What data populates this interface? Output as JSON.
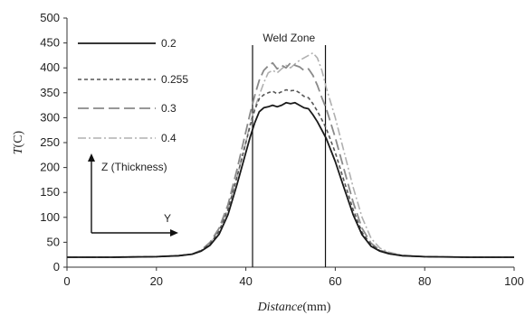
{
  "chart_data": {
    "type": "line",
    "xlabel_italic": "Distance",
    "xlabel_unit": "(mm)",
    "ylabel_italic": "T",
    "ylabel_unit": "(C)",
    "xlim": [
      0,
      100
    ],
    "ylim": [
      0,
      500
    ],
    "xticks": [
      0,
      20,
      40,
      60,
      80,
      100
    ],
    "yticks": [
      0,
      50,
      100,
      150,
      200,
      250,
      300,
      350,
      400,
      450,
      500
    ],
    "xtick_labels": [
      "0",
      "20",
      "40",
      "60",
      "80",
      "100"
    ],
    "ytick_labels": [
      "0",
      "50",
      "100",
      "150",
      "200",
      "250",
      "300",
      "350",
      "400",
      "450",
      "500"
    ],
    "grid": false,
    "legend_position": "top-left",
    "annotations": {
      "weld_zone_label": "Weld Zone",
      "weld_zone_bounds": [
        41.5,
        57.8
      ],
      "z_axis_label": "Z (Thickness)",
      "y_axis_label": "Y"
    },
    "series": [
      {
        "name": "0.2",
        "style": "solid",
        "color": "#1a1a1a",
        "x": [
          0,
          10,
          20,
          25,
          28,
          30,
          32,
          34,
          36,
          38,
          40,
          41,
          42,
          43,
          44,
          45,
          46,
          47,
          48,
          49,
          50,
          51,
          52,
          53,
          54,
          55,
          56,
          57,
          58,
          60,
          62,
          64,
          66,
          68,
          70,
          72,
          75,
          80,
          90,
          100
        ],
        "y": [
          20,
          20,
          21,
          23,
          26,
          32,
          44,
          66,
          105,
          165,
          230,
          262,
          290,
          312,
          320,
          322,
          325,
          322,
          325,
          330,
          328,
          330,
          325,
          320,
          318,
          306,
          292,
          275,
          258,
          212,
          158,
          105,
          65,
          42,
          32,
          27,
          23,
          21,
          20,
          20
        ]
      },
      {
        "name": "0.255",
        "style": "dashed",
        "color": "#555555",
        "x": [
          0,
          10,
          20,
          25,
          28,
          30,
          32,
          34,
          36,
          38,
          40,
          41,
          42,
          43,
          44,
          45,
          46,
          47,
          48,
          49,
          50,
          51,
          52,
          53,
          54,
          55,
          56,
          57,
          58,
          60,
          62,
          64,
          66,
          68,
          70,
          72,
          75,
          80,
          90,
          100
        ],
        "y": [
          20,
          20,
          21,
          23,
          26,
          33,
          47,
          72,
          115,
          180,
          250,
          285,
          316,
          338,
          346,
          350,
          353,
          348,
          352,
          356,
          354,
          355,
          350,
          343,
          340,
          328,
          313,
          296,
          278,
          230,
          172,
          115,
          70,
          45,
          33,
          27,
          23,
          21,
          20,
          20
        ]
      },
      {
        "name": "0.3",
        "style": "longdash",
        "color": "#8a8a8a",
        "x": [
          0,
          10,
          20,
          25,
          28,
          30,
          32,
          34,
          36,
          38,
          40,
          41,
          42,
          43,
          44,
          45,
          46,
          47,
          48,
          49,
          50,
          51,
          52,
          53,
          54,
          55,
          56,
          57,
          58,
          60,
          62,
          64,
          66,
          68,
          70,
          72,
          75,
          80,
          90,
          100
        ],
        "y": [
          20,
          20,
          21,
          23,
          26,
          34,
          50,
          78,
          125,
          195,
          272,
          310,
          345,
          375,
          395,
          404,
          410,
          398,
          405,
          400,
          410,
          405,
          402,
          395,
          398,
          385,
          365,
          340,
          318,
          260,
          195,
          130,
          78,
          48,
          34,
          28,
          23,
          21,
          20,
          20
        ]
      },
      {
        "name": "0.4",
        "style": "dashdot",
        "color": "#b0b0b0",
        "x": [
          0,
          10,
          20,
          25,
          28,
          30,
          32,
          34,
          36,
          38,
          40,
          41,
          42,
          43,
          44,
          45,
          46,
          47,
          48,
          49,
          50,
          51,
          52,
          53,
          54,
          55,
          56,
          57,
          58,
          60,
          62,
          64,
          66,
          68,
          70,
          72,
          75,
          80,
          90,
          100
        ],
        "y": [
          20,
          20,
          21,
          23,
          26,
          33,
          48,
          74,
          118,
          180,
          250,
          290,
          320,
          345,
          370,
          390,
          395,
          390,
          398,
          405,
          400,
          408,
          415,
          420,
          425,
          430,
          420,
          395,
          360,
          300,
          230,
          160,
          100,
          58,
          38,
          30,
          24,
          21,
          20,
          20
        ]
      }
    ]
  }
}
